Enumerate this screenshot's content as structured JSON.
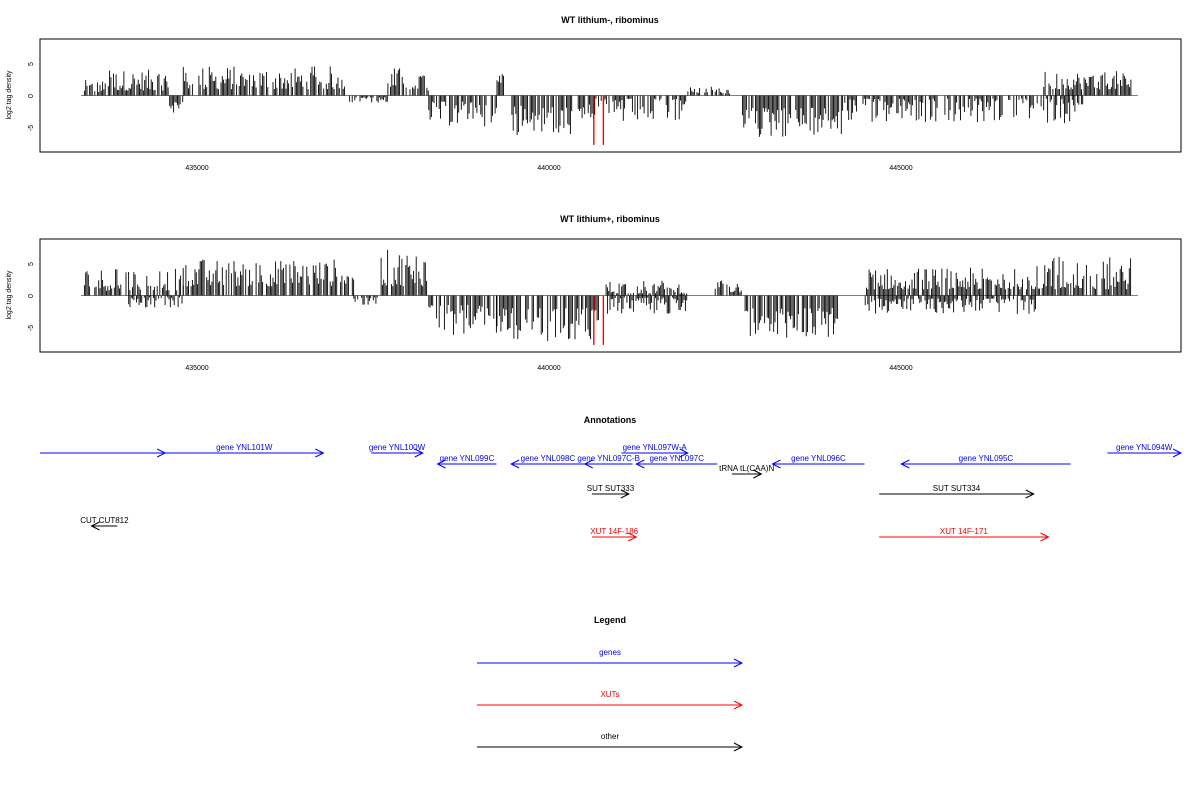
{
  "chart_data": [
    {
      "type": "bar",
      "title": "WT lithium-, ribominus",
      "ylabel": "log2 tag density",
      "xlim": [
        433300,
        448800
      ],
      "ylim": [
        -8.5,
        8.5
      ],
      "x_ticks": [
        "435000",
        "440000",
        "445000"
      ],
      "y_ticks": [
        "5",
        "0",
        "-5"
      ],
      "grid": false,
      "segments": [
        {
          "start": 433350,
          "end": 433700,
          "sign": 1,
          "min": 0.5,
          "max": 2.5
        },
        {
          "start": 433700,
          "end": 434600,
          "sign": 1,
          "min": 0.8,
          "max": 4.2
        },
        {
          "start": 434600,
          "end": 434800,
          "sign": -1,
          "min": 1,
          "max": 3
        },
        {
          "start": 434800,
          "end": 437200,
          "sign": 1,
          "min": 1.0,
          "max": 4.8
        },
        {
          "start": 437200,
          "end": 437800,
          "sign": -1,
          "min": 0.3,
          "max": 1.2
        },
        {
          "start": 437800,
          "end": 438400,
          "sign": 1,
          "min": 0.8,
          "max": 4.6
        },
        {
          "start": 438400,
          "end": 439400,
          "sign": -1,
          "min": 1,
          "max": 5
        },
        {
          "start": 439400,
          "end": 439500,
          "sign": 1,
          "min": 2,
          "max": 4
        },
        {
          "start": 439600,
          "end": 440700,
          "sign": -1,
          "min": 1.5,
          "max": 6.5
        },
        {
          "start": 440700,
          "end": 442200,
          "sign": -1,
          "min": 0.5,
          "max": 4.5
        },
        {
          "start": 442200,
          "end": 442900,
          "sign": 1,
          "min": 0.3,
          "max": 1.5
        },
        {
          "start": 443000,
          "end": 444500,
          "sign": -1,
          "min": 2,
          "max": 7
        },
        {
          "start": 444500,
          "end": 448000,
          "sign": -1,
          "min": 0.5,
          "max": 4.5
        },
        {
          "start": 447400,
          "end": 448700,
          "sign": 1,
          "min": 1.0,
          "max": 4.0
        }
      ],
      "red_markers": [
        {
          "x": 440820,
          "value": -8.0
        },
        {
          "x": 440960,
          "value": -8.0
        }
      ]
    },
    {
      "type": "bar",
      "title": "WT lithium+, ribominus",
      "ylabel": "log2 tag density",
      "xlim": [
        433300,
        448800
      ],
      "ylim": [
        -8.5,
        8.5
      ],
      "x_ticks": [
        "435000",
        "440000",
        "445000"
      ],
      "y_ticks": [
        "5",
        "0",
        "-5"
      ],
      "grid": false,
      "segments": [
        {
          "start": 433350,
          "end": 434800,
          "sign": 1,
          "min": 0.8,
          "max": 4.5
        },
        {
          "start": 434000,
          "end": 434800,
          "sign": -1,
          "min": 0.3,
          "max": 2
        },
        {
          "start": 434800,
          "end": 437300,
          "sign": 1,
          "min": 1.5,
          "max": 6.0
        },
        {
          "start": 437300,
          "end": 437700,
          "sign": -1,
          "min": 0.3,
          "max": 1.5
        },
        {
          "start": 437700,
          "end": 438400,
          "sign": 1,
          "min": 1.5,
          "max": 7.5
        },
        {
          "start": 438400,
          "end": 439400,
          "sign": -1,
          "min": 1.5,
          "max": 6.5
        },
        {
          "start": 439400,
          "end": 440900,
          "sign": -1,
          "min": 2,
          "max": 7.5
        },
        {
          "start": 441000,
          "end": 442200,
          "sign": 1,
          "min": 0.3,
          "max": 2.5
        },
        {
          "start": 441000,
          "end": 442200,
          "sign": -1,
          "min": 0.3,
          "max": 3.0
        },
        {
          "start": 442600,
          "end": 443000,
          "sign": 1,
          "min": 0.5,
          "max": 2.5
        },
        {
          "start": 443000,
          "end": 444400,
          "sign": -1,
          "min": 2,
          "max": 7
        },
        {
          "start": 444800,
          "end": 447300,
          "sign": 1,
          "min": 1.0,
          "max": 4.5
        },
        {
          "start": 444800,
          "end": 447300,
          "sign": -1,
          "min": 0.5,
          "max": 3.0
        },
        {
          "start": 447300,
          "end": 448700,
          "sign": 1,
          "min": 1.0,
          "max": 6.5
        }
      ],
      "red_markers": [
        {
          "x": 440820,
          "value": -8.0
        },
        {
          "x": 440960,
          "value": -8.0
        }
      ]
    }
  ],
  "annotations": {
    "title": "Annotations",
    "xlim": [
      433300,
      448800
    ],
    "features": [
      {
        "label": "",
        "color": "#0000ff",
        "start": 433300,
        "end": 435000,
        "dir": 1,
        "row": 0
      },
      {
        "label": "gene YNL101W",
        "color": "#0000ff",
        "start": 435000,
        "end": 437150,
        "dir": 1,
        "row": 0
      },
      {
        "label": "gene YNL100W",
        "color": "#0000ff",
        "start": 437800,
        "end": 438500,
        "dir": 1,
        "row": 0
      },
      {
        "label": "gene YNL099C",
        "color": "#0000ff",
        "start": 438700,
        "end": 439500,
        "dir": -1,
        "row": 1
      },
      {
        "label": "gene YNL098C",
        "color": "#0000ff",
        "start": 439700,
        "end": 440700,
        "dir": -1,
        "row": 1
      },
      {
        "label": "gene YNL097C-B",
        "color": "#0000ff",
        "start": 440700,
        "end": 441350,
        "dir": -1,
        "row": 1
      },
      {
        "label": "gene YNL097W-A",
        "color": "#0000ff",
        "start": 441200,
        "end": 442100,
        "dir": 1,
        "row": 0
      },
      {
        "label": "gene YNL097C",
        "color": "#0000ff",
        "start": 441400,
        "end": 442500,
        "dir": -1,
        "row": 1
      },
      {
        "label": "gene YNL096C",
        "color": "#0000ff",
        "start": 443250,
        "end": 444500,
        "dir": -1,
        "row": 1
      },
      {
        "label": "gene YNL095C",
        "color": "#0000ff",
        "start": 445000,
        "end": 447300,
        "dir": -1,
        "row": 1
      },
      {
        "label": "gene YNL094W",
        "color": "#0000ff",
        "start": 447800,
        "end": 449000,
        "dir": 1,
        "row": 0
      },
      {
        "label": "tRNA tL(CAA)N",
        "color": "#000000",
        "start": 442700,
        "end": 443100,
        "dir": 1,
        "row": 2
      },
      {
        "label": "SUT SUT333",
        "color": "#000000",
        "start": 440800,
        "end": 441300,
        "dir": 1,
        "row": 3
      },
      {
        "label": "SUT SUT334",
        "color": "#000000",
        "start": 444700,
        "end": 446800,
        "dir": 1,
        "row": 3
      },
      {
        "label": "CUT CUT812",
        "color": "#000000",
        "start": 434000,
        "end": 434350,
        "dir": -1,
        "row": 4
      },
      {
        "label": "XUT 14F-186",
        "color": "#ff0000",
        "start": 440800,
        "end": 441400,
        "dir": 1,
        "row": 5
      },
      {
        "label": "XUT 14F-171",
        "color": "#ff0000",
        "start": 444700,
        "end": 447000,
        "dir": 1,
        "row": 5
      }
    ]
  },
  "legend": {
    "title": "Legend",
    "items": [
      {
        "label": "genes",
        "color": "#0000ff"
      },
      {
        "label": "XUTs",
        "color": "#ff0000"
      },
      {
        "label": "other",
        "color": "#000000"
      }
    ]
  }
}
